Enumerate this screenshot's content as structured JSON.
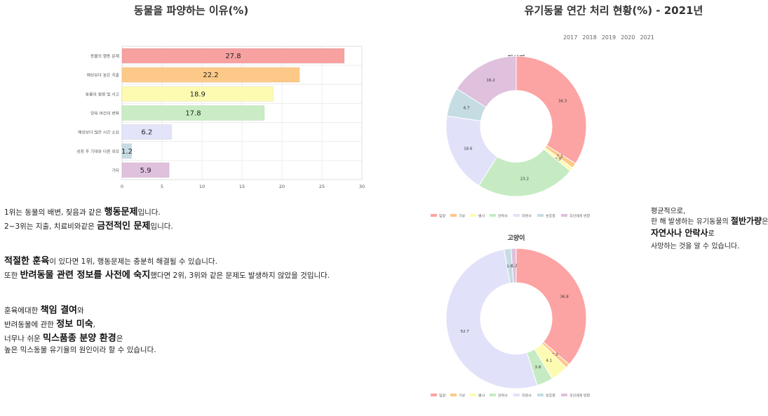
{
  "chart_data": [
    {
      "type": "bar",
      "orientation": "horizontal",
      "title": "동물을 파양하는 이유(%)",
      "categories": [
        "동물의 행동 문제",
        "예상보다 높은 지출",
        "동물의 질병 및 사고",
        "양육 여건의 변화",
        "예상보다 많은 시간 소요",
        "성장 후 기대와 다른 외모",
        "기타"
      ],
      "values": [
        27.8,
        22.2,
        18.9,
        17.8,
        6.2,
        1.2,
        5.9
      ],
      "colors": [
        "#f7a1a1",
        "#fdc988",
        "#fdfbb2",
        "#c9ecc4",
        "#e3e3fa",
        "#c7dbe3",
        "#dfc1dd"
      ],
      "xlim": [
        0,
        30
      ],
      "xticks": [
        0,
        5,
        10,
        15,
        20,
        25,
        30
      ]
    },
    {
      "type": "pie",
      "donut": true,
      "title": "강아지",
      "labels": [
        "입양",
        "기부",
        "병사",
        "안락사",
        "자연사",
        "보호중",
        "주인에게 반환"
      ],
      "values": [
        34.3,
        1.2,
        0.9,
        23.2,
        18.6,
        6.7,
        16.2
      ],
      "value_labels": [
        "34.3",
        "1.2",
        "0.9",
        "23.2",
        "18.6",
        "6.7",
        "16.2"
      ],
      "colors": [
        "#fca3a3",
        "#fdc988",
        "#fdfbb2",
        "#c6ebc3",
        "#e2e1fa",
        "#c5dde2",
        "#dfc0dd"
      ]
    },
    {
      "type": "pie",
      "donut": true,
      "title": "고양이",
      "labels": [
        "입양",
        "기부",
        "병사",
        "안락사",
        "자연사",
        "보호중",
        "주인에게 반환"
      ],
      "values": [
        36.8,
        1.0,
        4.1,
        3.8,
        52.7,
        1.6,
        1.2
      ],
      "value_labels": [
        "36.8",
        "1.0",
        "4.1",
        "3.8",
        "52.7",
        "1.6",
        "1.2"
      ],
      "colors": [
        "#fca3a3",
        "#fdc988",
        "#fdfbb2",
        "#c6ebc3",
        "#e2e1fa",
        "#c5dde2",
        "#dfc0dd"
      ]
    }
  ],
  "right_title": "유기동물 연간 처리 현황(%) - 2021년",
  "years": [
    "2017",
    "2018",
    "2019",
    "2020",
    "2021"
  ],
  "legend": [
    "입양",
    "기부",
    "병사",
    "안락사",
    "자연사",
    "보호중",
    "주인에게 반환"
  ],
  "paragraphs": {
    "p1": {
      "a": "1위는 동물의 배변, 짖음과 같은 ",
      "b": "행동문제",
      "c": "입니다."
    },
    "p2": {
      "a": "2~3위는 지출, 치료비와같은 ",
      "b": "금전적인 문제",
      "c": "입니다."
    },
    "p3": {
      "a": "적절한 훈육",
      "b": "이 있다면 1위, 행동문제는 충분히 해결될 수 있습니다."
    },
    "p4": {
      "a": "또한 ",
      "b": "반려동물 관련 정보를 사전에 숙지",
      "c": "했다면 2위, 3위와 같은 문제도 발생하지 않았을 것입니다."
    },
    "p5": {
      "a": "훈육에대한 ",
      "b": "책임 결여",
      "c": "와"
    },
    "p6": {
      "a": "반려동물에 관한 ",
      "b": "정보 미숙",
      "c": ","
    },
    "p7": {
      "a": "너무나 쉬운 ",
      "b": "믹스품종 분양 환경",
      "c": "은"
    },
    "p8": {
      "a": "높은 믹스동물 유기율의 원인이라 할 수 있습니다."
    }
  },
  "side_note": {
    "l1": "평균적으로,",
    "l2a": "한 해 발생하는 유기동물의 ",
    "l2b": "절반가량",
    "l2c": "은",
    "l3a": "자연사나 안락사",
    "l3b": "로",
    "l4": "사망하는 것을 알 수 있습니다."
  }
}
